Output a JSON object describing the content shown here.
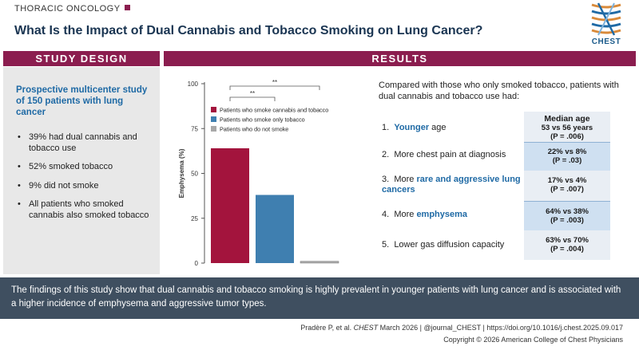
{
  "header": {
    "kicker": "THORACIC ONCOLOGY",
    "title": "What Is the Impact of Dual Cannabis and Tobacco Smoking on Lung Cancer?",
    "logo_text": "CHEST"
  },
  "study_design": {
    "heading": "STUDY DESIGN",
    "lead": "Prospective multicenter study of 150 patients with lung cancer",
    "bullets": [
      "39% had dual cannabis and tobacco use",
      "52% smoked tobacco",
      "9% did not smoke",
      "All patients who smoked cannabis also smoked tobacco"
    ]
  },
  "results": {
    "heading": "RESULTS",
    "intro": "Compared with those who only smoked tobacco, patients with dual cannabis and tobacco use had:",
    "findings": [
      {
        "num": "1.",
        "pre": "",
        "highlight": "Younger",
        "post": " age",
        "stat_title": "Median age",
        "stat_main": "53 vs 56 years",
        "stat_p": "(P = .006)"
      },
      {
        "num": "2.",
        "pre": "More chest pain at diagnosis",
        "highlight": "",
        "post": "",
        "stat_title": "",
        "stat_main": "22% vs 8%",
        "stat_p": "(P = .03)"
      },
      {
        "num": "3.",
        "pre": "More ",
        "highlight": "rare and aggressive lung cancers",
        "post": "",
        "stat_title": "",
        "stat_main": "17% vs 4%",
        "stat_p": "(P = .007)"
      },
      {
        "num": "4.",
        "pre": "More ",
        "highlight": "emphysema",
        "post": "",
        "stat_title": "",
        "stat_main": "64% vs 38%",
        "stat_p": "(P = .003)"
      },
      {
        "num": "5.",
        "pre": "Lower gas diffusion capacity",
        "highlight": "",
        "post": "",
        "stat_title": "",
        "stat_main": "63% vs 70%",
        "stat_p": "(P = .004)"
      }
    ]
  },
  "chart_data": {
    "type": "bar",
    "title": "",
    "xlabel": "",
    "ylabel": "Emphysema (%)",
    "ylim": [
      0,
      100
    ],
    "yticks": [
      0,
      25,
      50,
      75,
      100
    ],
    "categories": [
      "Patients who smoke cannabis and tobacco",
      "Patients who smoke only tobacco",
      "Patients who do not smoke"
    ],
    "values": [
      64,
      38,
      1
    ],
    "colors": [
      "#a3143d",
      "#3f7fb0",
      "#a8a8a8"
    ],
    "legend_position": "top",
    "significance": [
      {
        "from": 0,
        "to": 1,
        "label": "**"
      },
      {
        "from": 0,
        "to": 2,
        "label": "**"
      }
    ]
  },
  "summary": "The findings of this study show that dual cannabis and tobacco smoking is highly prevalent in younger patients with lung cancer and is associated with a higher incidence of emphysema and aggressive tumor types.",
  "footer": {
    "citation_pre": "Pradère P, et al. ",
    "citation_journal": "CHEST",
    "citation_post": " March 2026  |  @journal_CHEST  |  https://doi.org/10.1016/j.chest.2025.09.017",
    "copyright": "Copyright © 2026 American College of Chest Physicians"
  },
  "colors": {
    "accent": "#8b1d4f",
    "title": "#1a3552",
    "highlight": "#1f6aa5",
    "summary_bg": "#3f4f60"
  }
}
